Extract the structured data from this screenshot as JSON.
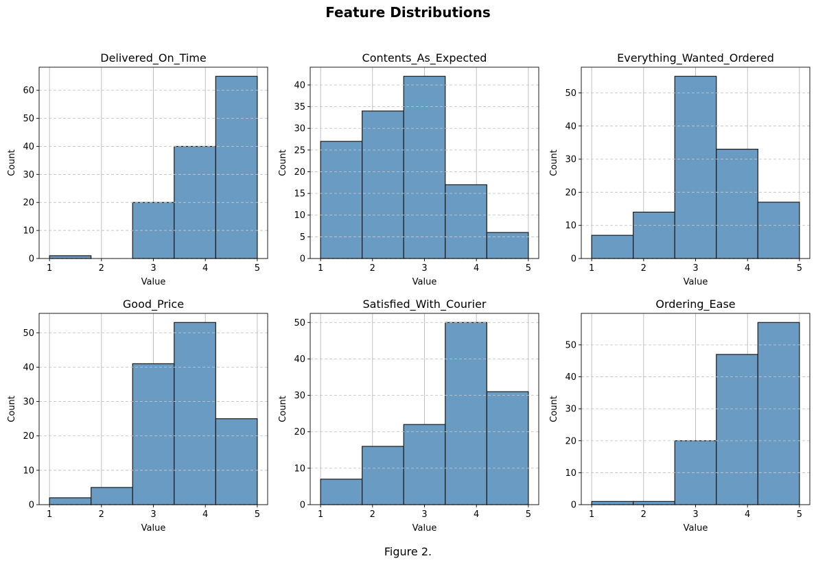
{
  "figure": {
    "title": "Feature Distributions",
    "caption": "Figure 2."
  },
  "colors": {
    "bar_fill": "#6a9bc3",
    "bar_edge": "#1a1a1a",
    "grid": "#c4c4c4",
    "axis": "#000000"
  },
  "chart_data": [
    {
      "type": "bar",
      "title": "Delivered_On_Time",
      "xlabel": "Value",
      "ylabel": "Count",
      "bin_edges": [
        1,
        1.8,
        2.6,
        3.4,
        4.2,
        5
      ],
      "values": [
        1,
        0,
        20,
        40,
        65
      ],
      "xticks": [
        1,
        2,
        3,
        4,
        5
      ],
      "yticks": [
        0,
        10,
        20,
        30,
        40,
        50,
        60
      ],
      "xlim": [
        0.8,
        5.2
      ],
      "ylim": [
        0,
        68.25
      ],
      "grid": "on, dashed horizontal"
    },
    {
      "type": "bar",
      "title": "Contents_As_Expected",
      "xlabel": "Value",
      "ylabel": "Count",
      "bin_edges": [
        1,
        1.8,
        2.6,
        3.4,
        4.2,
        5
      ],
      "values": [
        27,
        34,
        42,
        17,
        6
      ],
      "xticks": [
        1,
        2,
        3,
        4,
        5
      ],
      "yticks": [
        0,
        5,
        10,
        15,
        20,
        25,
        30,
        35,
        40
      ],
      "xlim": [
        0.8,
        5.2
      ],
      "ylim": [
        0,
        44.1
      ],
      "grid": "on, dashed horizontal"
    },
    {
      "type": "bar",
      "title": "Everything_Wanted_Ordered",
      "xlabel": "Value",
      "ylabel": "Count",
      "bin_edges": [
        1,
        1.8,
        2.6,
        3.4,
        4.2,
        5
      ],
      "values": [
        7,
        14,
        55,
        33,
        17
      ],
      "xticks": [
        1,
        2,
        3,
        4,
        5
      ],
      "yticks": [
        0,
        10,
        20,
        30,
        40,
        50
      ],
      "xlim": [
        0.8,
        5.2
      ],
      "ylim": [
        0,
        57.75
      ],
      "grid": "on, dashed horizontal"
    },
    {
      "type": "bar",
      "title": "Good_Price",
      "xlabel": "Value",
      "ylabel": "Count",
      "bin_edges": [
        1,
        1.8,
        2.6,
        3.4,
        4.2,
        5
      ],
      "values": [
        2,
        5,
        41,
        53,
        25
      ],
      "xticks": [
        1,
        2,
        3,
        4,
        5
      ],
      "yticks": [
        0,
        10,
        20,
        30,
        40,
        50
      ],
      "xlim": [
        0.8,
        5.2
      ],
      "ylim": [
        0,
        55.65
      ],
      "grid": "on, dashed horizontal"
    },
    {
      "type": "bar",
      "title": "Satisfied_With_Courier",
      "xlabel": "Value",
      "ylabel": "Count",
      "bin_edges": [
        1,
        1.8,
        2.6,
        3.4,
        4.2,
        5
      ],
      "values": [
        7,
        16,
        22,
        50,
        31
      ],
      "xticks": [
        1,
        2,
        3,
        4,
        5
      ],
      "yticks": [
        0,
        10,
        20,
        30,
        40,
        50
      ],
      "xlim": [
        0.8,
        5.2
      ],
      "ylim": [
        0,
        52.5
      ],
      "grid": "on, dashed horizontal"
    },
    {
      "type": "bar",
      "title": "Ordering_Ease",
      "xlabel": "Value",
      "ylabel": "Count",
      "bin_edges": [
        1,
        1.8,
        2.6,
        3.4,
        4.2,
        5
      ],
      "values": [
        1,
        1,
        20,
        47,
        57
      ],
      "xticks": [
        1,
        2,
        3,
        4,
        5
      ],
      "yticks": [
        0,
        10,
        20,
        30,
        40,
        50
      ],
      "xlim": [
        0.8,
        5.2
      ],
      "ylim": [
        0,
        59.85
      ],
      "grid": "on, dashed horizontal"
    }
  ]
}
